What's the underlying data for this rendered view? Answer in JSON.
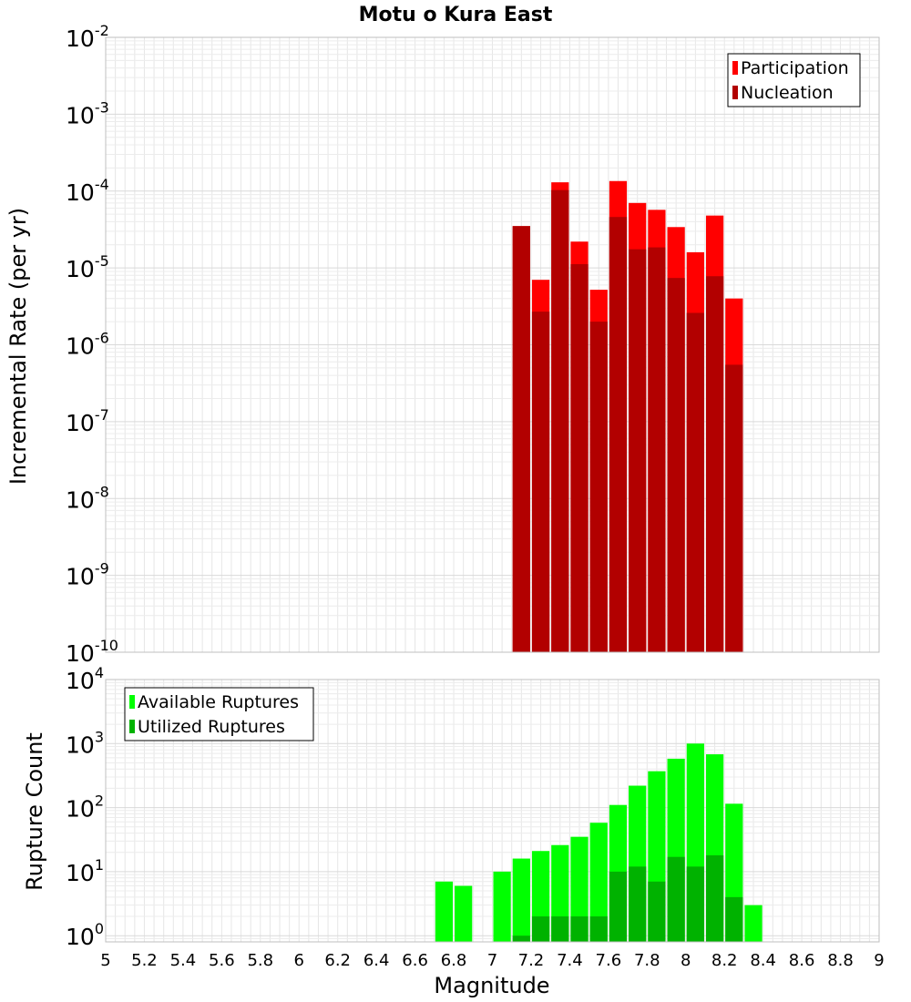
{
  "chart_data": [
    {
      "type": "bar",
      "title": "Motu o Kura East",
      "ylabel": "Incremental Rate (per yr)",
      "xlabel": "",
      "yscale": "log",
      "ylim": [
        1e-10,
        0.01
      ],
      "xlim": [
        5,
        9
      ],
      "grid": true,
      "legend_position": "top-right",
      "x": [
        7.15,
        7.25,
        7.35,
        7.45,
        7.55,
        7.65,
        7.75,
        7.85,
        7.95,
        8.05,
        8.15,
        8.25
      ],
      "yticks": [
        {
          "base": "10",
          "exp": "-2"
        },
        {
          "base": "10",
          "exp": "-3"
        },
        {
          "base": "10",
          "exp": "-4"
        },
        {
          "base": "10",
          "exp": "-5"
        },
        {
          "base": "10",
          "exp": "-6"
        },
        {
          "base": "10",
          "exp": "-7"
        },
        {
          "base": "10",
          "exp": "-8"
        },
        {
          "base": "10",
          "exp": "-9"
        },
        {
          "base": "10",
          "exp": "-10"
        }
      ],
      "series": [
        {
          "name": "Participation",
          "color": "#ff0000",
          "values": [
            3.5e-05,
            7e-06,
            0.00013,
            2.2e-05,
            5.2e-06,
            0.000135,
            7e-05,
            5.7e-05,
            3.4e-05,
            1.6e-05,
            4.8e-05,
            4e-06
          ]
        },
        {
          "name": "Nucleation",
          "color": "#b20000",
          "values": [
            3.5e-05,
            2.7e-06,
            0.000103,
            1.12e-05,
            2e-06,
            4.6e-05,
            1.75e-05,
            1.85e-05,
            7.4e-06,
            2.6e-06,
            7.8e-06,
            5.5e-07
          ]
        }
      ]
    },
    {
      "type": "bar",
      "title": "",
      "ylabel": "Rupture Count",
      "xlabel": "Magnitude",
      "yscale": "log",
      "ylim": [
        0.8,
        10000
      ],
      "xlim": [
        5,
        9
      ],
      "grid": true,
      "legend_position": "top-left",
      "x": [
        6.75,
        6.85,
        7.05,
        7.15,
        7.25,
        7.35,
        7.45,
        7.55,
        7.65,
        7.75,
        7.85,
        7.95,
        8.05,
        8.15,
        8.25,
        8.35
      ],
      "xticks": [
        "5",
        "5.2",
        "5.4",
        "5.6",
        "5.8",
        "6",
        "6.2",
        "6.4",
        "6.6",
        "6.8",
        "7",
        "7.2",
        "7.4",
        "7.6",
        "7.8",
        "8",
        "8.2",
        "8.4",
        "8.6",
        "8.8",
        "9"
      ],
      "yticks": [
        {
          "base": "10",
          "exp": "4"
        },
        {
          "base": "10",
          "exp": "3"
        },
        {
          "base": "10",
          "exp": "2"
        },
        {
          "base": "10",
          "exp": "1"
        },
        {
          "base": "10",
          "exp": "0"
        }
      ],
      "series": [
        {
          "name": "Available Ruptures",
          "color": "#00ff00",
          "values": [
            7,
            6,
            10,
            16,
            21,
            26,
            35,
            58,
            110,
            220,
            370,
            580,
            1000,
            680,
            115,
            3
          ]
        },
        {
          "name": "Utilized Ruptures",
          "color": "#00b200",
          "values": [
            0,
            0,
            0,
            1,
            2,
            2,
            2,
            2,
            10,
            12,
            7,
            17,
            12,
            18,
            4,
            0
          ]
        }
      ]
    }
  ]
}
